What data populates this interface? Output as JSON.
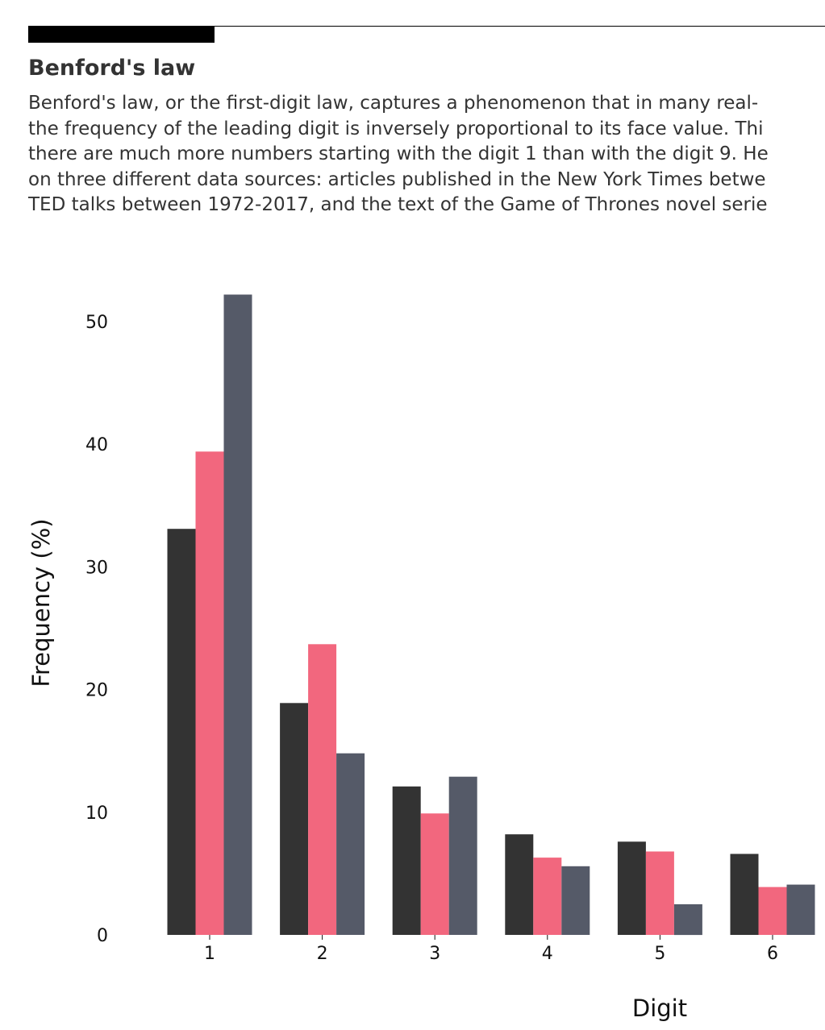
{
  "header": {
    "title": "Benford's law",
    "description_lines": [
      "Benford's law, or the first-digit law, captures a phenomenon that in many real-",
      "the frequency of the leading digit is inversely proportional to its face value. Thi",
      "there are much more numbers starting with the digit 1 than with the digit 9. He",
      "on three different data sources: articles published in the New York Times betwe",
      "TED talks between 1972-2017, and the text of the Game of Thrones novel serie"
    ]
  },
  "chart_data": {
    "type": "bar",
    "title": "",
    "xlabel": "Digit",
    "ylabel": "Frequency (%)",
    "categories": [
      "1",
      "2",
      "3",
      "4",
      "5",
      "6"
    ],
    "yticks": [
      "0",
      "10",
      "20",
      "30",
      "40",
      "50"
    ],
    "ylim": [
      0,
      52.5
    ],
    "grid": false,
    "legend": "none",
    "series": [
      {
        "color": "#333333",
        "values": [
          33.1,
          18.9,
          12.1,
          8.2,
          7.6,
          6.6
        ]
      },
      {
        "color": "#f2677e",
        "values": [
          39.4,
          23.7,
          9.9,
          6.3,
          6.8,
          3.9
        ]
      },
      {
        "color": "#555a68",
        "values": [
          52.2,
          14.8,
          12.9,
          5.6,
          2.5,
          4.1
        ]
      }
    ]
  }
}
